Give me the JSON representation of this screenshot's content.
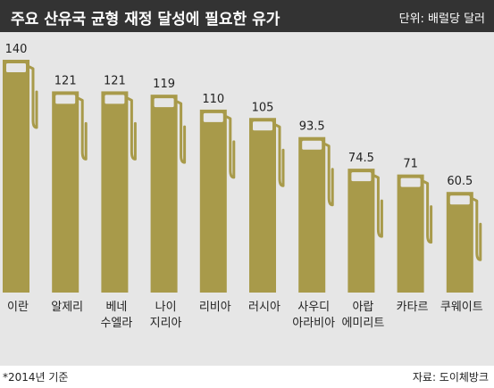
{
  "header": {
    "title": "주요 산유국 균형 재정 달성에 필요한 유가",
    "unit": "단위: 배럴당 달러"
  },
  "footer": {
    "footnote": "*2014년 기준",
    "source": "자료: 도이체방크"
  },
  "colors": {
    "bar": "#a89a4a",
    "background": "#e6e6e6",
    "header": "#333333"
  },
  "chart_data": {
    "type": "bar",
    "title": "주요 산유국 균형 재정 달성에 필요한 유가",
    "ylabel": "단위: 배럴당 달러",
    "xlabel": "",
    "categories": [
      [
        "이란"
      ],
      [
        "알제리"
      ],
      [
        "베네",
        "수엘라"
      ],
      [
        "나이",
        "지리아"
      ],
      [
        "리비아"
      ],
      [
        "러시아"
      ],
      [
        "사우디",
        "아라비아"
      ],
      [
        "아랍",
        "에미리트"
      ],
      [
        "카타르"
      ],
      [
        "쿠웨이트"
      ]
    ],
    "values": [
      140,
      121,
      121,
      119,
      110,
      105,
      93.5,
      74.5,
      71,
      60.5
    ],
    "value_labels": [
      "140",
      "121",
      "121",
      "119",
      "110",
      "105",
      "93.5",
      "74.5",
      "71",
      "60.5"
    ],
    "ylim": [
      0,
      140
    ],
    "grid": false,
    "legend": "none"
  }
}
